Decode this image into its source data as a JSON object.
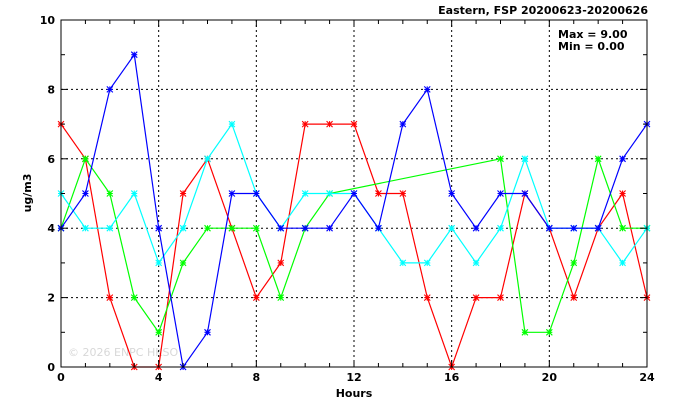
{
  "chart_data": {
    "type": "line",
    "title": "Eastern, FSP 20200623-20200626",
    "xlabel": "Hours",
    "ylabel": "ug/m3",
    "xlim": [
      0,
      24
    ],
    "ylim": [
      0,
      10
    ],
    "xticks": [
      "0",
      "4",
      "8",
      "12",
      "16",
      "20",
      "24"
    ],
    "yticks": [
      "0",
      "2",
      "4",
      "6",
      "8",
      "10"
    ],
    "grid": true,
    "max_label": "Max = 9.00",
    "min_label": "Min = 0.00",
    "watermark": "© 2026 ENPC HKSO",
    "series": [
      {
        "color": "#ff0000",
        "points": [
          [
            0,
            7
          ],
          [
            1,
            6
          ],
          [
            2,
            2
          ],
          [
            3,
            0
          ],
          [
            4,
            0
          ],
          [
            5,
            5
          ],
          [
            6,
            6
          ],
          [
            7,
            4
          ],
          [
            8,
            2
          ],
          [
            9,
            3
          ],
          [
            10,
            7
          ],
          [
            11,
            7
          ],
          [
            12,
            7
          ],
          [
            13,
            5
          ],
          [
            14,
            5
          ],
          [
            15,
            2
          ],
          [
            16,
            0
          ],
          [
            17,
            2
          ],
          [
            18,
            2
          ],
          [
            19,
            5
          ],
          [
            20,
            4
          ],
          [
            21,
            2
          ],
          [
            22,
            4
          ],
          [
            23,
            5
          ],
          [
            24,
            2
          ]
        ]
      },
      {
        "color": "#00ff00",
        "points": [
          [
            0,
            4
          ],
          [
            1,
            6
          ],
          [
            2,
            5
          ],
          [
            3,
            2
          ],
          [
            4,
            1
          ],
          [
            5,
            3
          ],
          [
            6,
            4
          ],
          [
            7,
            4
          ],
          [
            8,
            4
          ],
          [
            9,
            2
          ],
          [
            10,
            4
          ],
          [
            11,
            5
          ],
          [
            18,
            6
          ],
          [
            19,
            1
          ],
          [
            20,
            1
          ],
          [
            21,
            3
          ],
          [
            22,
            6
          ],
          [
            23,
            4
          ],
          [
            24,
            4
          ]
        ]
      },
      {
        "color": "#00ffff",
        "points": [
          [
            0,
            5
          ],
          [
            1,
            4
          ],
          [
            2,
            4
          ],
          [
            3,
            5
          ],
          [
            4,
            3
          ],
          [
            5,
            4
          ],
          [
            6,
            6
          ],
          [
            7,
            7
          ],
          [
            8,
            5
          ],
          [
            9,
            4
          ],
          [
            10,
            5
          ],
          [
            11,
            5
          ],
          [
            12,
            5
          ],
          [
            13,
            4
          ],
          [
            14,
            3
          ],
          [
            15,
            3
          ],
          [
            16,
            4
          ],
          [
            17,
            3
          ],
          [
            18,
            4
          ],
          [
            19,
            6
          ],
          [
            20,
            4
          ],
          [
            21,
            4
          ],
          [
            22,
            4
          ],
          [
            23,
            3
          ],
          [
            24,
            4
          ]
        ]
      },
      {
        "color": "#0000ff",
        "points": [
          [
            0,
            4
          ],
          [
            1,
            5
          ],
          [
            2,
            8
          ],
          [
            3,
            9
          ],
          [
            4,
            4
          ],
          [
            5,
            0
          ],
          [
            6,
            1
          ],
          [
            7,
            5
          ],
          [
            8,
            5
          ],
          [
            9,
            4
          ],
          [
            10,
            4
          ],
          [
            11,
            4
          ],
          [
            12,
            5
          ],
          [
            13,
            4
          ],
          [
            14,
            7
          ],
          [
            15,
            8
          ],
          [
            16,
            5
          ],
          [
            17,
            4
          ],
          [
            18,
            5
          ],
          [
            19,
            5
          ],
          [
            20,
            4
          ],
          [
            21,
            4
          ],
          [
            22,
            4
          ],
          [
            23,
            6
          ],
          [
            24,
            7
          ]
        ]
      }
    ]
  }
}
